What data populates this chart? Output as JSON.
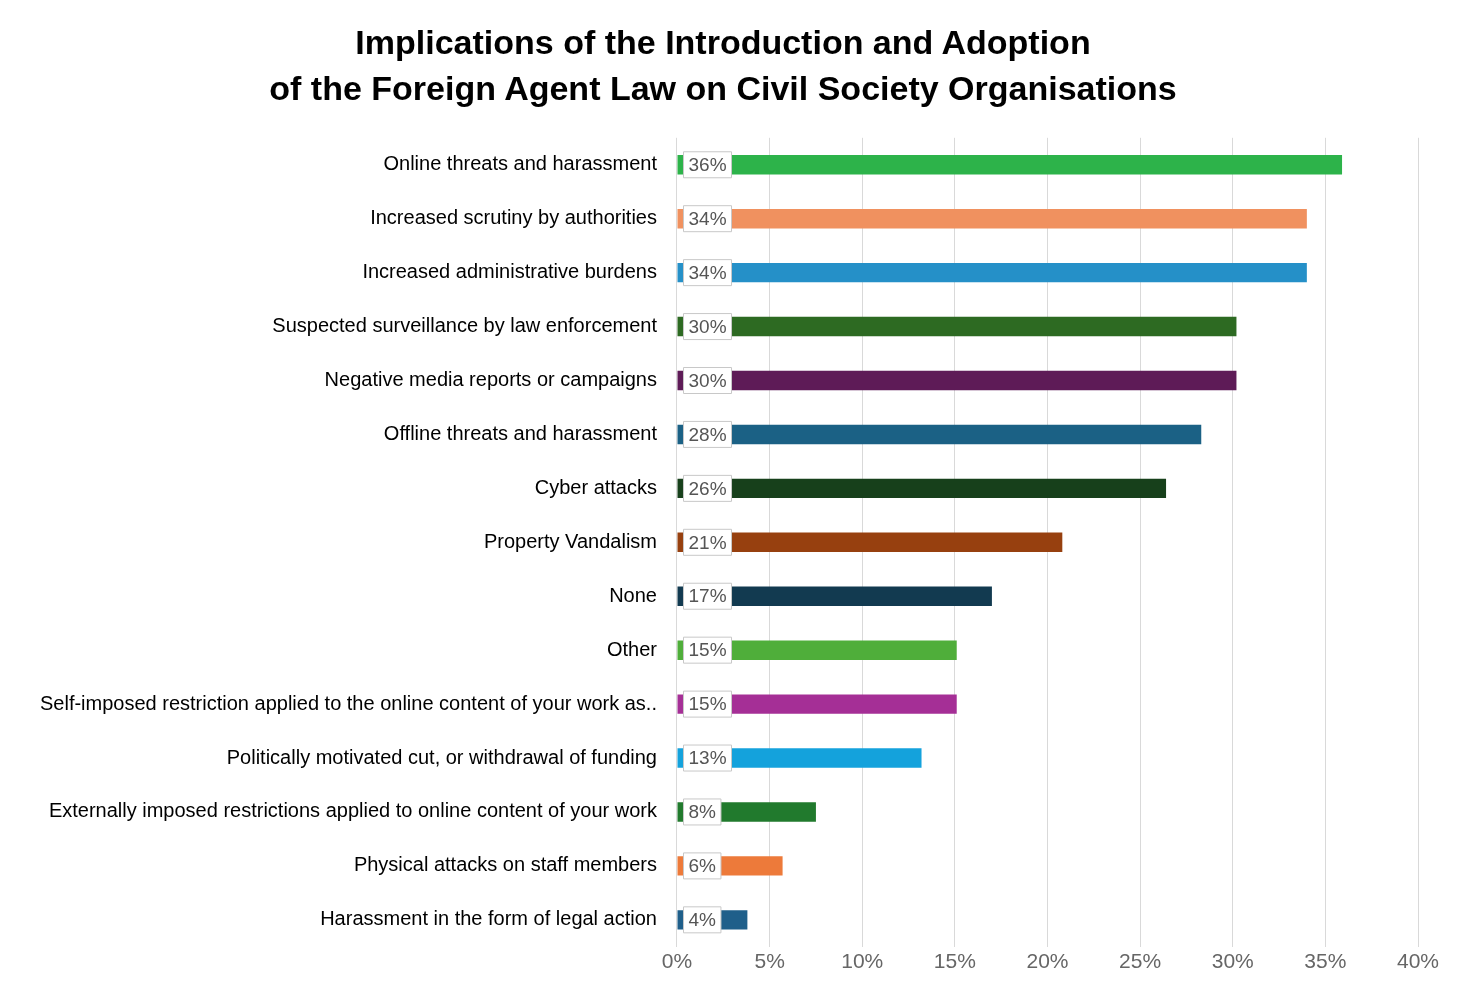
{
  "chart_data": {
    "type": "bar",
    "orientation": "horizontal",
    "title": "Implications of the Introduction and Adoption\nof the Foreign Agent Law on Civil Society Organisations",
    "categories": [
      "Online threats and harassment",
      "Increased scrutiny by authorities",
      "Increased administrative burdens",
      "Suspected surveillance by law enforcement",
      "Negative media reports or campaigns",
      "Offline threats and harassment",
      "Cyber attacks",
      "Property Vandalism",
      "None",
      "Other",
      "Self-imposed restriction applied to the online content of your work as..",
      "Politically motivated cut, or withdrawal of funding",
      "Externally imposed restrictions applied to online content of your work",
      "Physical attacks on staff members",
      "Harassment in the form of legal action"
    ],
    "values": [
      35.9,
      34.0,
      34.0,
      30.2,
      30.2,
      28.3,
      26.4,
      20.8,
      17.0,
      15.1,
      15.1,
      13.2,
      7.5,
      5.7,
      3.8
    ],
    "colors": [
      "#2db34a",
      "#f0915f",
      "#2590c8",
      "#2d6a22",
      "#5e1b57",
      "#1b6185",
      "#17401b",
      "#97400f",
      "#123a50",
      "#4fae3a",
      "#a52f96",
      "#14a2dc",
      "#217a2d",
      "#ed7a3a",
      "#1f5f8a"
    ],
    "value_labels": [
      "36%",
      "34%",
      "34%",
      "30%",
      "30%",
      "28%",
      "26%",
      "21%",
      "17%",
      "15%",
      "15%",
      "13%",
      "8%",
      "6%",
      "4%"
    ],
    "xlim": [
      0,
      40
    ],
    "xticks": [
      {
        "value": 0,
        "label": "0%"
      },
      {
        "value": 5,
        "label": "5%"
      },
      {
        "value": 10,
        "label": "10%"
      },
      {
        "value": 15,
        "label": "15%"
      },
      {
        "value": 20,
        "label": "20%"
      },
      {
        "value": 25,
        "label": "25%"
      },
      {
        "value": 30,
        "label": "30%"
      },
      {
        "value": 35,
        "label": "35%"
      },
      {
        "value": 40,
        "label": "40%"
      }
    ],
    "grid": "x",
    "legend": false
  }
}
